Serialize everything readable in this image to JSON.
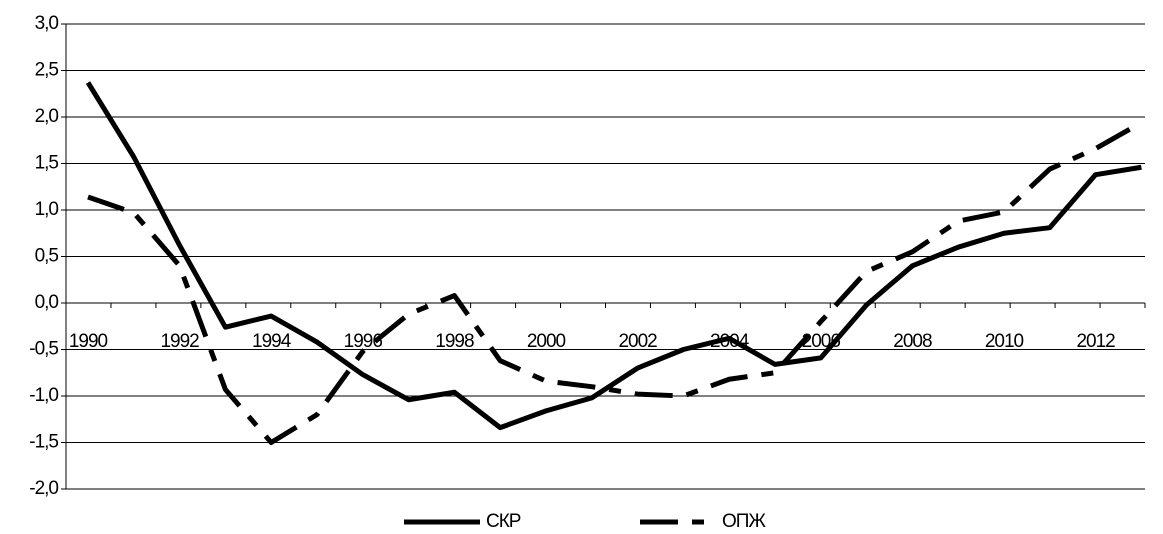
{
  "chart_data": {
    "type": "line",
    "categories": [
      "1990",
      null,
      "1992",
      null,
      "1994",
      null,
      "1996",
      null,
      "1998",
      null,
      "2000",
      null,
      "2002",
      null,
      "2004",
      null,
      "2006",
      null,
      "2008",
      null,
      "2010",
      null,
      "2012",
      null
    ],
    "series": [
      {
        "name": "СКР",
        "color": "#000000",
        "line_style": "solid",
        "values": [
          2.37,
          1.57,
          0.62,
          -0.26,
          -0.14,
          -0.42,
          -0.77,
          -1.04,
          -0.96,
          -1.34,
          -1.16,
          -1.02,
          -0.7,
          -0.5,
          -0.38,
          -0.66,
          -0.59,
          -0.02,
          0.4,
          0.6,
          0.75,
          0.81,
          1.38,
          1.46
        ]
      },
      {
        "name": "ОПЖ",
        "color": "#000000",
        "line_style": "dashed",
        "values": [
          1.14,
          0.97,
          0.4,
          -0.93,
          -1.5,
          -1.2,
          -0.52,
          -0.12,
          0.08,
          -0.62,
          -0.84,
          -0.9,
          -0.98,
          -1.0,
          -0.82,
          -0.75,
          -0.2,
          0.34,
          0.55,
          0.88,
          0.98,
          1.44,
          1.66,
          1.94
        ]
      }
    ],
    "ylim": [
      -2,
      3
    ],
    "yticks": [
      {
        "value": 3,
        "label": "3,0"
      },
      {
        "value": 2.5,
        "label": "2,5"
      },
      {
        "value": 2,
        "label": "2,0"
      },
      {
        "value": 1.5,
        "label": "1,5"
      },
      {
        "value": 1,
        "label": "1,0"
      },
      {
        "value": 0.5,
        "label": "0,5"
      },
      {
        "value": 0,
        "label": "0,0"
      },
      {
        "value": -0.5,
        "label": "-0,5"
      },
      {
        "value": -1,
        "label": "-1,0"
      },
      {
        "value": -1.5,
        "label": "-1,5"
      },
      {
        "value": -2,
        "label": "-2,0"
      }
    ],
    "grid": true,
    "legend": "bottom"
  }
}
